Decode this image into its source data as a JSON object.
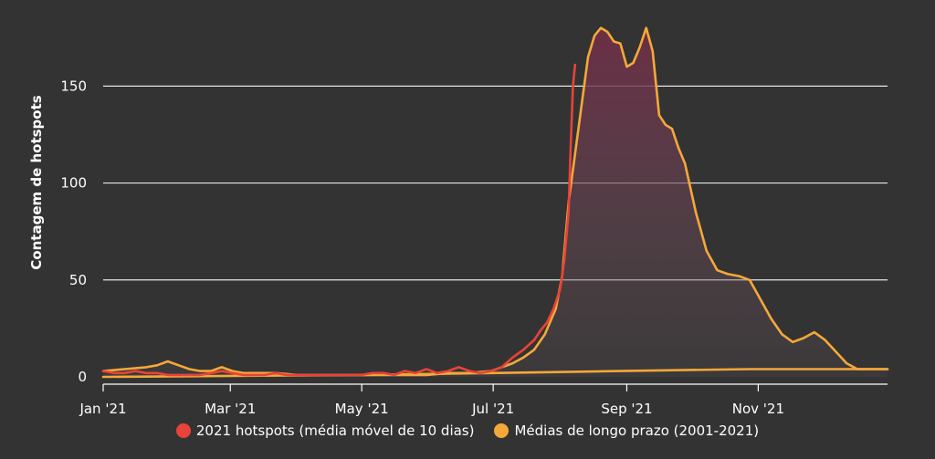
{
  "chart_data": {
    "type": "line",
    "ylabel": "Contagem de hotspots",
    "xlabel": "",
    "ylim": [
      0,
      185
    ],
    "y_ticks": [
      0,
      50,
      100,
      150
    ],
    "x_ticks": [
      {
        "label": "Jan '21",
        "day": 0
      },
      {
        "label": "Mar '21",
        "day": 59
      },
      {
        "label": "May '21",
        "day": 120
      },
      {
        "label": "Jul '21",
        "day": 181
      },
      {
        "label": "Sep '21",
        "day": 243
      },
      {
        "label": "Nov '21",
        "day": 304
      }
    ],
    "x_range_days": [
      0,
      364
    ],
    "grid": "horizontal",
    "legend_position": "bottom",
    "series": [
      {
        "name": "2021 hotspots (média móvel de 10 dias)",
        "color": "#e8433a",
        "x": [
          0,
          5,
          10,
          15,
          20,
          25,
          30,
          35,
          40,
          45,
          50,
          55,
          60,
          65,
          70,
          75,
          80,
          85,
          90,
          95,
          100,
          105,
          110,
          115,
          120,
          125,
          130,
          135,
          140,
          145,
          150,
          155,
          160,
          165,
          170,
          175,
          180,
          185,
          190,
          195,
          200,
          203,
          206,
          209,
          212,
          214,
          216,
          217,
          218,
          219
        ],
        "y": [
          3,
          2,
          2,
          3,
          2,
          2,
          1,
          1,
          1,
          1,
          2,
          3,
          2,
          1,
          1,
          1,
          2,
          1,
          1,
          1,
          1,
          1,
          1,
          1,
          1,
          2,
          2,
          1,
          3,
          2,
          4,
          2,
          3,
          5,
          3,
          2,
          3,
          5,
          10,
          14,
          19,
          24,
          28,
          35,
          45,
          60,
          85,
          120,
          150,
          161
        ]
      },
      {
        "name": "Médias de longo prazo (2001-2021)",
        "color": "#f5a83a",
        "x": [
          0,
          10,
          20,
          25,
          30,
          35,
          40,
          45,
          50,
          55,
          60,
          65,
          70,
          80,
          90,
          100,
          110,
          120,
          130,
          140,
          150,
          160,
          170,
          180,
          185,
          190,
          195,
          200,
          205,
          210,
          213,
          216,
          219,
          222,
          225,
          228,
          231,
          234,
          237,
          240,
          243,
          246,
          249,
          252,
          255,
          258,
          261,
          264,
          267,
          270,
          275,
          280,
          285,
          290,
          295,
          300,
          305,
          310,
          315,
          320,
          325,
          330,
          335,
          340,
          345,
          350,
          355,
          364
        ],
        "y": [
          3,
          4,
          5,
          6,
          8,
          6,
          4,
          3,
          3,
          5,
          3,
          2,
          2,
          2,
          1,
          1,
          1,
          1,
          1,
          1,
          1,
          2,
          2,
          3,
          5,
          7,
          10,
          14,
          22,
          35,
          52,
          90,
          115,
          140,
          165,
          176,
          180,
          178,
          173,
          172,
          160,
          162,
          170,
          180,
          168,
          135,
          130,
          128,
          118,
          110,
          85,
          65,
          55,
          53,
          52,
          50,
          40,
          30,
          22,
          18,
          20,
          23,
          19,
          13,
          7,
          4,
          4,
          4
        ]
      },
      {
        "name": "",
        "color": "#f5a83a",
        "x": [
          0,
          60,
          120,
          180,
          240,
          300,
          364
        ],
        "y": [
          0,
          0.5,
          1,
          2,
          3,
          4,
          4
        ]
      }
    ],
    "legend": [
      {
        "label": "2021 hotspots (média móvel de 10 dias)",
        "color": "#e8433a"
      },
      {
        "label": "Médias de longo prazo (2001-2021)",
        "color": "#f5a83a"
      }
    ]
  }
}
